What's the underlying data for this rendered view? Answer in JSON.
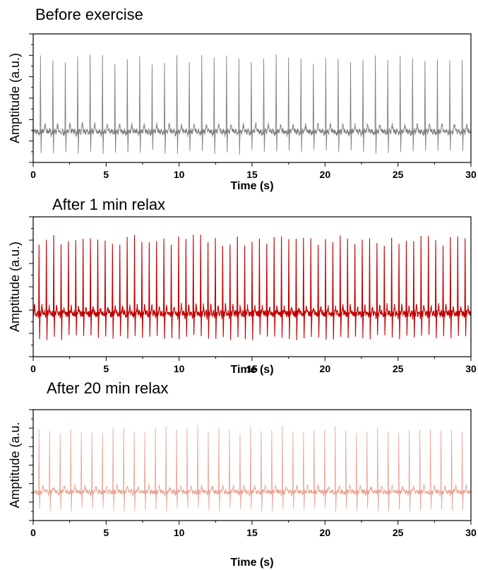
{
  "panels": [
    {
      "title": "Before exercise",
      "xlabel": "Time (s)",
      "ylabel": "Amptitude (a.u.)",
      "color": "#7f7f7f"
    },
    {
      "title": "After 1 min relax",
      "xlabel": "Time (s)",
      "ylabel": "Amptitude (a.u.)",
      "color": "#c00000"
    },
    {
      "title": "After 20 min relax",
      "xlabel": "Time (s)",
      "ylabel": "Amptitude (a.u.",
      "color": "#e9a08e"
    }
  ],
  "chart_data": [
    {
      "type": "line",
      "title": "Before exercise",
      "xlabel": "Time (s)",
      "ylabel": "Amptitude (a.u.)",
      "xlim": [
        0,
        30
      ],
      "xticks": [
        "0",
        "5",
        "10",
        "15",
        "20",
        "25",
        "30"
      ],
      "yticks_labeled": false,
      "series": [
        {
          "beats_in_window": 35,
          "first_beat_s": 0.5,
          "last_beat_s": 29.4
        }
      ]
    },
    {
      "type": "line",
      "title": "After 1 min relax",
      "xlabel": "Time (s)",
      "ylabel": "Amptitude (a.u.)",
      "xlim": [
        0,
        30
      ],
      "xticks": [
        "0",
        "5",
        "10",
        "15",
        "20",
        "25",
        "30"
      ],
      "yticks_labeled": false,
      "series": [
        {
          "beats_in_window": 59,
          "first_beat_s": 0.4,
          "last_beat_s": 29.6
        }
      ]
    },
    {
      "type": "line",
      "title": "After 20 min relax",
      "xlabel": "Time (s)",
      "ylabel": "Amptitude (a.u.",
      "xlim": [
        0,
        30
      ],
      "xticks": [
        "0",
        "5",
        "10",
        "15",
        "20",
        "25",
        "30"
      ],
      "yticks_labeled": false,
      "series": [
        {
          "beats_in_window": 41,
          "first_beat_s": 0.4,
          "last_beat_s": 29.4
        }
      ]
    }
  ]
}
